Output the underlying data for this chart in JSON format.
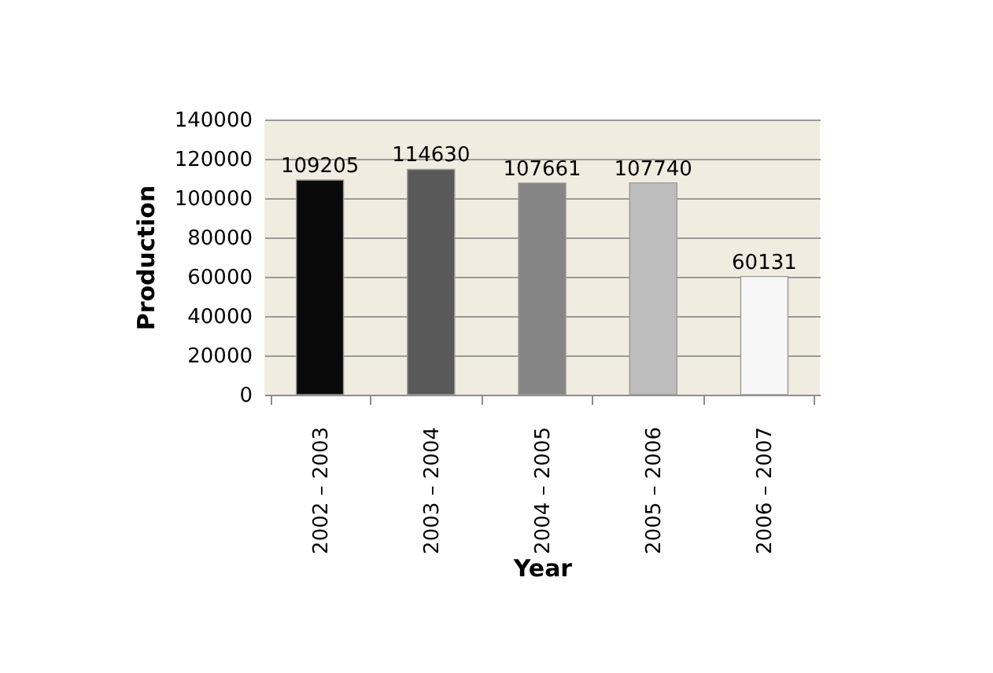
{
  "chart_data": {
    "type": "bar",
    "xlabel": "Year",
    "ylabel": "Production",
    "categories": [
      "2002 – 2003",
      "2003 – 2004",
      "2004 – 2005",
      "2005 – 2006",
      "2006 – 2007"
    ],
    "values": [
      109205,
      114630,
      107661,
      107740,
      60131
    ],
    "colors": [
      "#0a0a0a",
      "#595959",
      "#858585",
      "#bdbdbd",
      "#f7f7f7"
    ],
    "ylim": [
      0,
      140000
    ],
    "yticks": [
      0,
      20000,
      40000,
      60000,
      80000,
      100000,
      120000,
      140000
    ],
    "grid": "y",
    "data_labels": true
  }
}
